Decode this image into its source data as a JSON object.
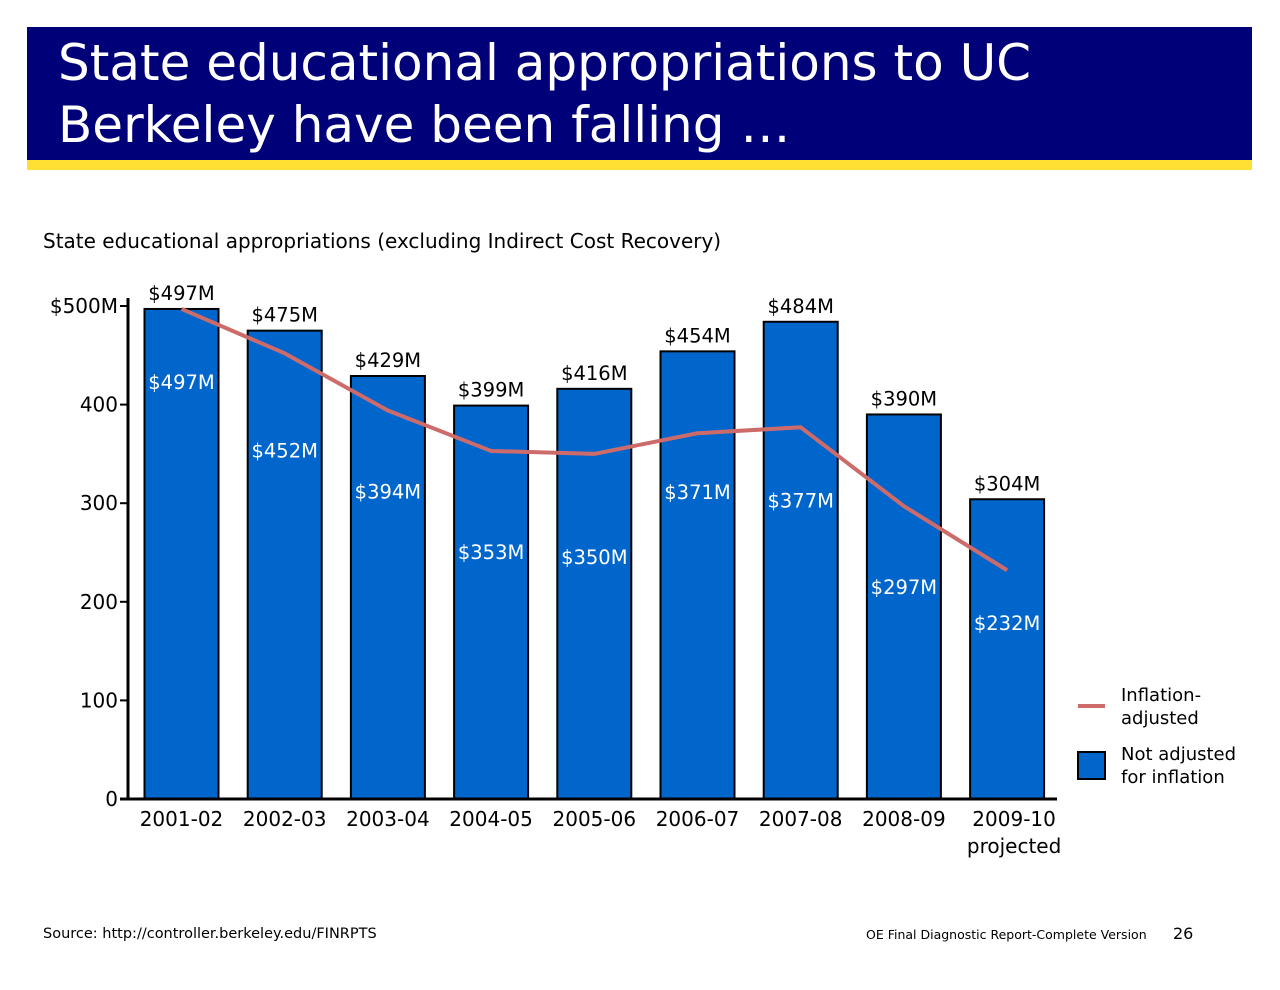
{
  "slide": {
    "title": "State educational appropriations to UC Berkeley have been falling …",
    "source": "Source: http://controller.berkeley.edu/FINRPTS",
    "footer_report": "OE Final Diagnostic Report-Complete Version",
    "page_number": "26"
  },
  "colors": {
    "title_band": "#000078",
    "title_rule": "#ffe033",
    "bar_fill": "#0066cc",
    "line_color": "#cd6b6b"
  },
  "chart_data": {
    "type": "bar",
    "title": "State educational appropriations (excluding Indirect Cost Recovery)",
    "categories": [
      "2001-02",
      "2002-03",
      "2003-04",
      "2004-05",
      "2005-06",
      "2006-07",
      "2007-08",
      "2008-09",
      "2009-10 projected"
    ],
    "category_lines": [
      [
        "2001-02"
      ],
      [
        "2002-03"
      ],
      [
        "2003-04"
      ],
      [
        "2004-05"
      ],
      [
        "2005-06"
      ],
      [
        "2006-07"
      ],
      [
        "2007-08"
      ],
      [
        "2008-09"
      ],
      [
        "2009-10",
        "projected"
      ]
    ],
    "ylim": [
      0,
      500
    ],
    "yticks": [
      0,
      100,
      200,
      300,
      400,
      500
    ],
    "ytick_labels": [
      "0",
      "100",
      "200",
      "300",
      "400",
      "$500M"
    ],
    "grid": false,
    "legend_position": "right",
    "series": [
      {
        "name": "Not adjusted for inflation",
        "legend_lines": [
          "Not adjusted",
          "for inflation"
        ],
        "type": "bar",
        "values": [
          497,
          475,
          429,
          399,
          416,
          454,
          484,
          390,
          304
        ],
        "labels": [
          "$497M",
          "$475M",
          "$429M",
          "$399M",
          "$416M",
          "$454M",
          "$484M",
          "$390M",
          "$304M"
        ]
      },
      {
        "name": "Inflation-adjusted",
        "legend_lines": [
          "Inflation-",
          "adjusted"
        ],
        "type": "line",
        "values": [
          497,
          452,
          394,
          353,
          350,
          371,
          377,
          297,
          232
        ],
        "labels": [
          "$497M",
          "$452M",
          "$394M",
          "$353M",
          "$350M",
          "$371M",
          "$377M",
          "$297M",
          "$232M"
        ]
      }
    ]
  }
}
